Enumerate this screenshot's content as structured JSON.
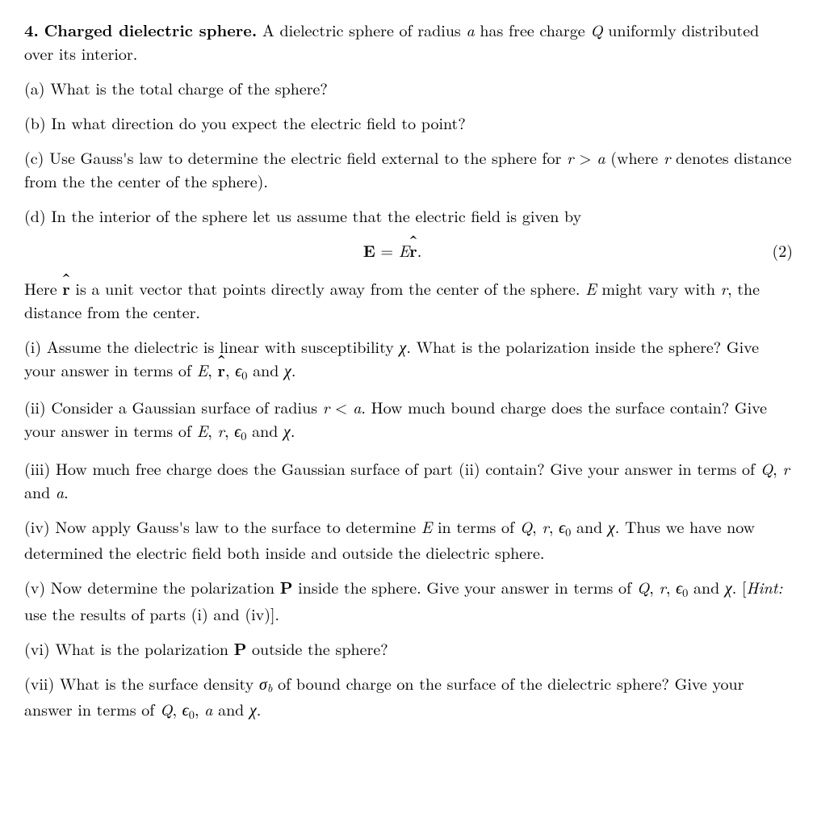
{
  "problem_number": "4.",
  "problem_title": "Charged dielectric sphere.",
  "intro_a": "A dielectric sphere of radius ",
  "intro_b": " has free charge ",
  "intro_c": " uniformly distributed over its interior.",
  "a": "(a) What is the total charge of the sphere?",
  "b": "(b) In what direction do you expect the electric field to point?",
  "c1": "(c) Use Gauss's law to determine the electric field external to the sphere for ",
  "c2": " (where ",
  "c3": " denotes distance from the the center of the sphere).",
  "d": "(d) In the interior of the sphere let us assume that the electric field is given by",
  "eq_num": "(2)",
  "here1": "Here ",
  "here2": " is a unit vector that points directly away from the center of the sphere. ",
  "here3": " might vary with ",
  "here4": ", the distance from the center.",
  "i1": "(i) Assume the dielectric is linear with susceptibility ",
  "i2": ". What is the polarization inside the sphere? Give your answer in terms of ",
  "i3": " and ",
  "ii1": "(ii) Consider a Gaussian surface of radius ",
  "ii2": ". How much bound charge does the surface contain? Give your answer in terms of ",
  "ii3": " and ",
  "iii1": "(iii) How much free charge does the Gaussian surface of part (ii) contain? Give your answer in terms of ",
  "iii2": " and ",
  "iv1": "(iv) Now apply Gauss's law to the surface to determine ",
  "iv2": " in terms of ",
  "iv3": " and ",
  "iv4": ". Thus we have now determined the electric field both inside and outside the dielectric sphere.",
  "v1": "(v) Now determine the polarization ",
  "v2": " inside the sphere. Give your answer in terms of ",
  "v3": " and ",
  "v4": ". [",
  "hint": "Hint:",
  "v5": " use the results of parts (i) and (iv)].",
  "vi1": "(vi) What is the polarization ",
  "vi2": " outside the sphere?",
  "vii1": "(vii) What is the surface density ",
  "vii2": " of bound charge on the surface of the dielectric sphere? Give your answer in terms of ",
  "vii3": " and ",
  "sym": {
    "a": "a",
    "Q": "Q",
    "r": "r",
    "E": "E",
    "chi": "χ",
    "eps0_e": "ϵ",
    "zero": "0",
    "rhat": "r",
    "Ebold": "E",
    "Pbold": "P",
    "sigma": "σ",
    "b": "b",
    "gt": " > ",
    "lt": " < ",
    "eq": " = ",
    "comma": ", ",
    "period": "."
  }
}
